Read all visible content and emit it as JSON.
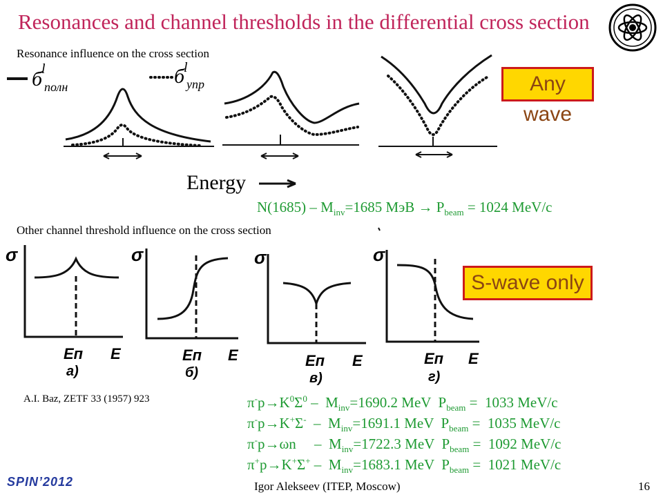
{
  "slide": {
    "title": "Resonances and channel thresholds in the differential cross section",
    "section1_label": "Resonance influence on the cross section",
    "section2_label": "Other channel threshold influence on the cross section",
    "energy_label": "Energy",
    "any_wave": "Any wave",
    "s_wave_only": "S-wave only",
    "citation": "A.I. Baz, ZETF 33 (1957) 923"
  },
  "figure1": {
    "legend_full": "б",
    "legend_full_sup": "l",
    "legend_full_sub": "полн",
    "legend_elastic": "б",
    "legend_elastic_sup": "l",
    "legend_elastic_sub": "упр"
  },
  "figure2": {
    "axis_y": "σ",
    "axis_x": "E",
    "threshold": "Eп",
    "panels": [
      "а)",
      "б)",
      "в)",
      "г)"
    ]
  },
  "resonance_line": {
    "text1": "N(1685) – M",
    "sub1": "inv",
    "text2": "=1685 МэВ  → P",
    "sub2": "beam",
    "text3": " = 1024 MeV/c"
  },
  "reactions": [
    {
      "pi": "π",
      "charge": "-",
      "mid": "p→K",
      "s1": "0",
      "sigma": "Σ",
      "s2": "0",
      "gap": " –  M",
      "inv": "inv",
      "mass": "=1690.2 MeV  P",
      "beam": "beam",
      "mom": " =  1033 MeV/c"
    },
    {
      "pi": "π",
      "charge": "-",
      "mid": "p→K",
      "s1": "+",
      "sigma": "Σ",
      "s2": "-",
      "gap": "  –  M",
      "inv": "inv",
      "mass": "=1691.1 MeV  P",
      "beam": "beam",
      "mom": " =  1035 MeV/c"
    },
    {
      "pi": "π",
      "charge": "-",
      "mid": "p→ωn",
      "s1": "",
      "sigma": "",
      "s2": "",
      "gap": "     –  M",
      "inv": "inv",
      "mass": "=1722.3 MeV  P",
      "beam": "beam",
      "mom": " =  1092 MeV/c"
    },
    {
      "pi": "π",
      "charge": "+",
      "mid": "p→K",
      "s1": "+",
      "sigma": "Σ",
      "s2": "+",
      "gap": " –  M",
      "inv": "inv",
      "mass": "=1683.1 MeV  P",
      "beam": "beam",
      "mom": " =  1021 MeV/c"
    }
  ],
  "footer": {
    "conference": "SPIN’2012",
    "author": "Igor Alekseev (ITEP, Moscow)",
    "page": "16"
  },
  "colors": {
    "title": "#c0245a",
    "green": "#1e9a32",
    "box_fill": "#ffd700",
    "box_border": "#cc1a1a",
    "box_text": "#8b4513",
    "footer": "#243a9e"
  }
}
